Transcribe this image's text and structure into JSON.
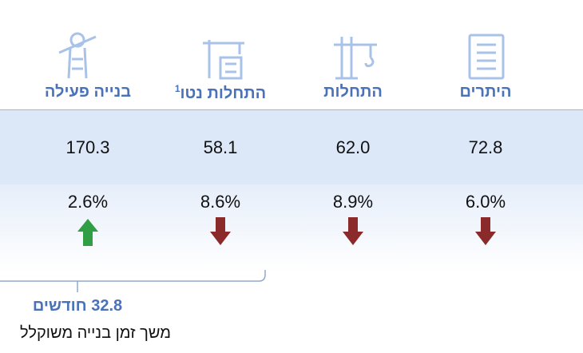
{
  "columns": [
    {
      "label": "היתרים",
      "value": "72.8",
      "change": "6.0%",
      "trend": "down"
    },
    {
      "label": "התחלות",
      "value": "62.0",
      "change": "8.9%",
      "trend": "down"
    },
    {
      "label": "התחלות נטו",
      "note": "1",
      "value": "58.1",
      "change": "8.6%",
      "trend": "down"
    },
    {
      "label": "בנייה פעילה",
      "value": "170.3",
      "change": "2.6%",
      "trend": "up"
    }
  ],
  "summary": {
    "value": "32.8 חודשים",
    "caption": "משך זמן בנייה משוקלל"
  }
}
